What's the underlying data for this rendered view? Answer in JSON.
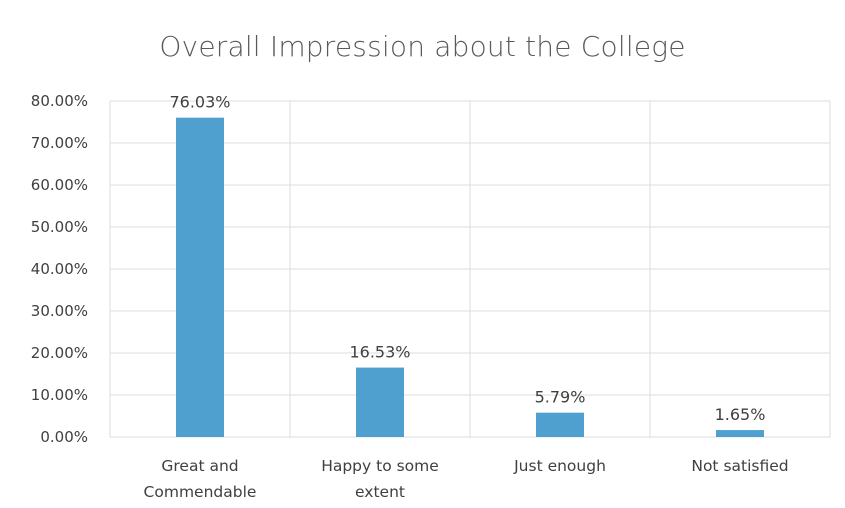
{
  "chart_data": {
    "type": "bar",
    "title": "Overall Impression about the College",
    "xlabel": "",
    "ylabel": "",
    "categories": [
      [
        "Great and",
        "Commendable"
      ],
      [
        "Happy to some",
        "extent"
      ],
      [
        "Just enough"
      ],
      [
        "Not satisfied"
      ]
    ],
    "values": [
      76.03,
      16.53,
      5.79,
      1.65
    ],
    "data_labels": [
      "76.03%",
      "16.53%",
      "5.79%",
      "1.65%"
    ],
    "ylim": [
      0,
      80
    ],
    "y_ticks": [
      "0.00%",
      "10.00%",
      "20.00%",
      "30.00%",
      "40.00%",
      "50.00%",
      "60.00%",
      "70.00%",
      "80.00%"
    ],
    "grid": true,
    "legend": "none",
    "bar_color": "#4f9fcf",
    "grid_color": "#dcdcdc",
    "text_color": "#404040"
  }
}
